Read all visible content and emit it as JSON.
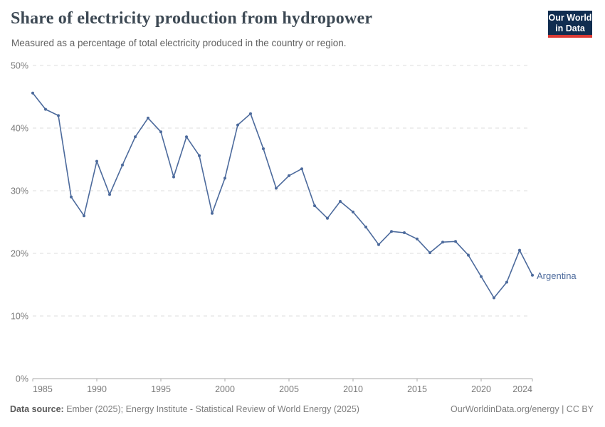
{
  "header": {
    "title": "Share of electricity production from hydropower",
    "subtitle": "Measured as a percentage of total electricity produced in the country or region.",
    "logo": {
      "line1": "Our World",
      "line2": "in Data",
      "bg_color": "#102d50",
      "accent_color": "#dc3a34"
    }
  },
  "chart_data": {
    "type": "line",
    "title": "Share of electricity production from hydropower",
    "xlabel": "",
    "ylabel": "",
    "x": [
      1985,
      1986,
      1987,
      1988,
      1989,
      1990,
      1991,
      1992,
      1993,
      1994,
      1995,
      1996,
      1997,
      1998,
      1999,
      2000,
      2001,
      2002,
      2003,
      2004,
      2005,
      2006,
      2007,
      2008,
      2009,
      2010,
      2011,
      2012,
      2013,
      2014,
      2015,
      2016,
      2017,
      2018,
      2019,
      2020,
      2021,
      2022,
      2023,
      2024
    ],
    "series": [
      {
        "name": "Argentina",
        "color": "#4c6a9c",
        "values": [
          45.6,
          43.0,
          42.0,
          29.0,
          26.0,
          34.7,
          29.4,
          34.1,
          38.6,
          41.6,
          39.4,
          32.2,
          38.6,
          35.6,
          26.4,
          32.0,
          40.5,
          42.3,
          36.7,
          30.4,
          32.4,
          33.5,
          27.6,
          25.6,
          28.3,
          26.6,
          24.2,
          21.4,
          23.5,
          23.3,
          22.3,
          20.1,
          21.8,
          21.9,
          19.7,
          16.3,
          12.9,
          15.4,
          20.5,
          16.5
        ]
      }
    ],
    "ylim": [
      0,
      50
    ],
    "yticks": [
      0,
      10,
      20,
      30,
      40,
      50
    ],
    "ytick_suffix": "%",
    "xticks": [
      1985,
      1990,
      1995,
      2000,
      2005,
      2010,
      2015,
      2020,
      2024
    ],
    "grid": true,
    "legend_position": "end-of-line"
  },
  "footer": {
    "data_source_label": "Data source:",
    "data_source_value": "Ember (2025); Energy Institute - Statistical Review of World Energy (2025)",
    "link_text": "OurWorldinData.org/energy | CC BY"
  },
  "colors": {
    "line": "#4c6a9c",
    "gridline": "#dddddd",
    "axis": "#a8a8a8",
    "tick_label": "#7b7b7b",
    "title": "#3d4954",
    "subtitle": "#616161"
  }
}
